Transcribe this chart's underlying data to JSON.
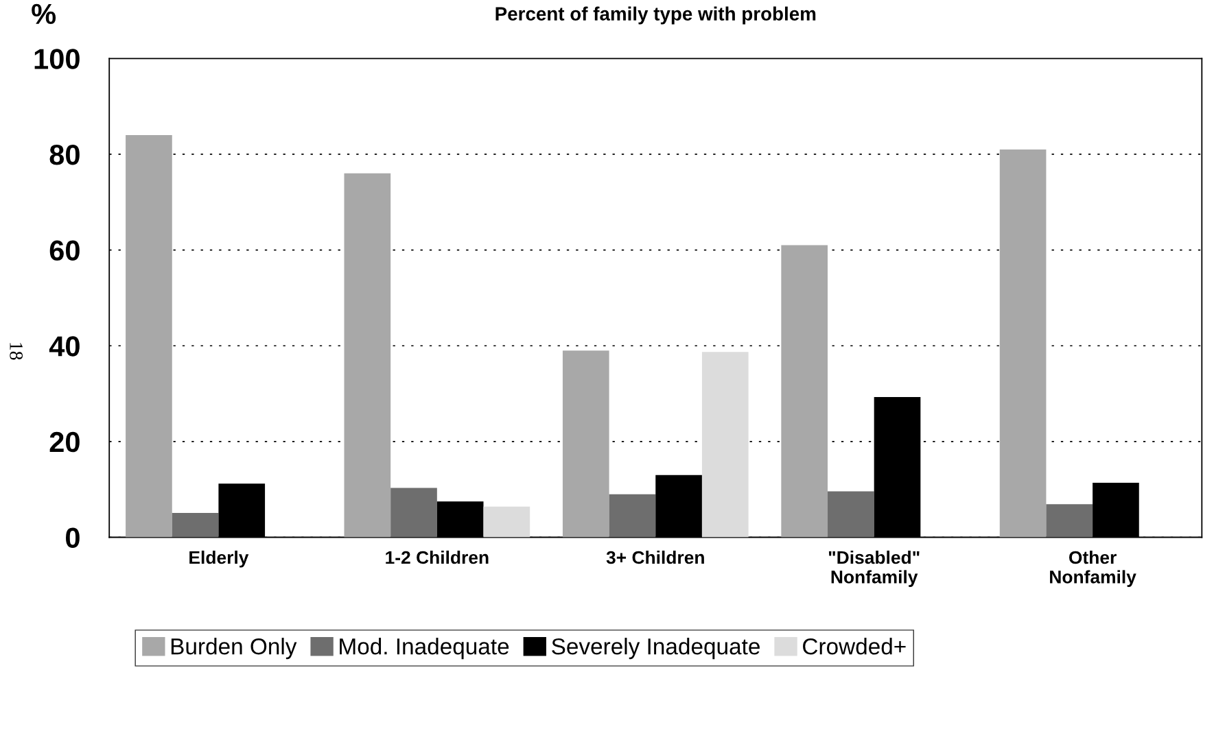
{
  "chart_data": {
    "type": "bar",
    "title": "Percent of family type with problem",
    "ylabel": "%",
    "categories": [
      "Elderly",
      "1-2 Children",
      "3+ Children",
      "\"Disabled\"\nNonfamily",
      "Other\nNonfamily"
    ],
    "series": [
      {
        "name": "Burden Only",
        "color": "#a8a8a8",
        "values": [
          84,
          76,
          39,
          61,
          81
        ]
      },
      {
        "name": "Mod. Inadequate",
        "color": "#6e6e6e",
        "values": [
          5.1,
          10.3,
          9.0,
          9.6,
          6.9
        ]
      },
      {
        "name": "Severely Inadequate",
        "color": "#000000",
        "values": [
          11.2,
          7.5,
          13.0,
          29.3,
          11.4
        ]
      },
      {
        "name": "Crowded+",
        "color": "#dcdcdc",
        "values": [
          null,
          6.4,
          38.7,
          null,
          null
        ]
      }
    ],
    "ylim": [
      0,
      100
    ],
    "yticks": [
      0,
      20,
      40,
      60,
      80,
      100
    ],
    "grid": "y",
    "legend": "bottom",
    "annotations": [
      "18"
    ]
  }
}
